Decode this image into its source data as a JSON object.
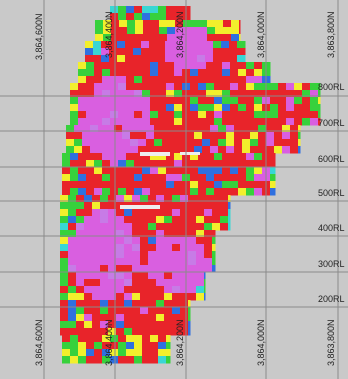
{
  "northing_labels_top": [
    "3,864,600N",
    "3,864,400N",
    "3,864,200N",
    "3,864,000N",
    "3,863,800N"
  ],
  "northing_labels_bottom": [
    "3,864,600N",
    "3,864,400N",
    "3,864,200N",
    "3,864,000N",
    "3,863,800N"
  ],
  "elevation_labels": [
    "800RL",
    "700RL",
    "600RL",
    "500RL",
    "400RL",
    "300RL",
    "200RL"
  ],
  "colors": {
    "background": "#c9c9c9",
    "grid": "#8a8a8a",
    "red": "#e8242a",
    "magenta": "#d95fe0",
    "green": "#37d13c",
    "yellow": "#f2ef2c",
    "blue": "#2f70e0",
    "cyan": "#39d6d4",
    "purple": "#c77be6"
  }
}
